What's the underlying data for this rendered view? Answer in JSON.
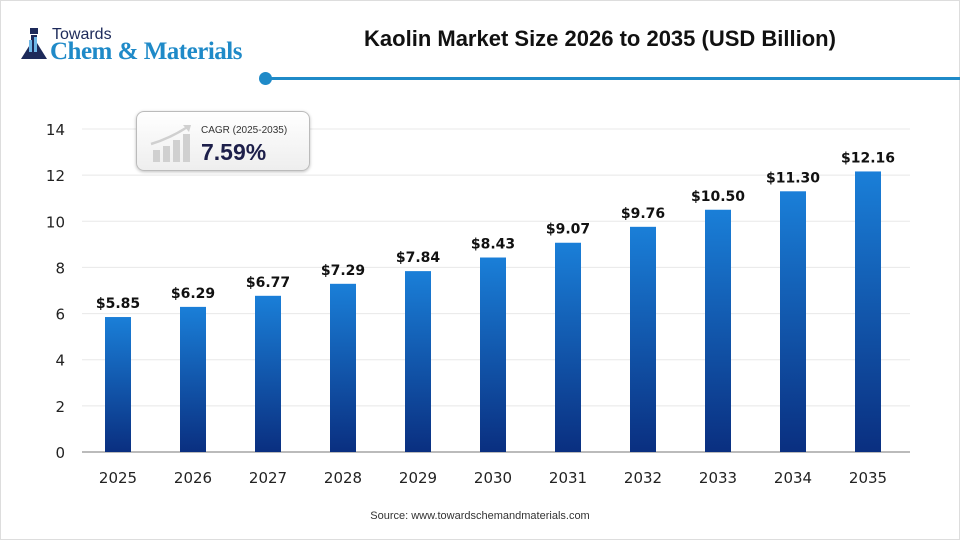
{
  "logo": {
    "line1": "Towards",
    "line2": "Chem & Materials"
  },
  "colors": {
    "accent": "#1f8ac8",
    "bar_top": "#1a7fd8",
    "bar_bottom": "#0a2f80"
  },
  "cagr": {
    "label": "CAGR (2025-2035)",
    "value": "7.59%",
    "icon": "growth-chart-icon"
  },
  "source": "Source:  www.towardschemandmaterials.com",
  "chart_data": {
    "type": "bar",
    "title": "Kaolin Market Size 2026 to 2035 (USD Billion)",
    "xlabel": "",
    "ylabel": "",
    "categories": [
      "2025",
      "2026",
      "2027",
      "2028",
      "2029",
      "2030",
      "2031",
      "2032",
      "2033",
      "2034",
      "2035"
    ],
    "values": [
      5.85,
      6.29,
      6.77,
      7.29,
      7.84,
      8.43,
      9.07,
      9.76,
      10.5,
      11.3,
      12.16
    ],
    "data_labels": [
      "$5.85",
      "$6.29",
      "$6.77",
      "$7.29",
      "$7.84",
      "$8.43",
      "$9.07",
      "$9.76",
      "$10.50",
      "$11.30",
      "$12.16"
    ],
    "ylim": [
      0,
      14
    ],
    "yticks": [
      "0",
      "2",
      "4",
      "6",
      "8",
      "10",
      "12",
      "14"
    ],
    "grid": true,
    "legend": "none"
  }
}
